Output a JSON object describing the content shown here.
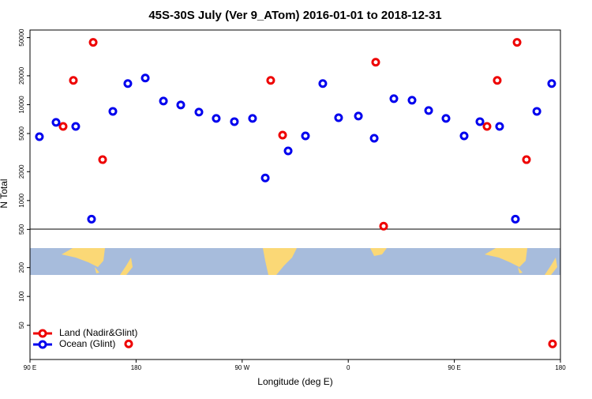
{
  "chart_data": {
    "type": "scatter",
    "title": "45S-30S July (Ver 9_ATom)   2016-01-01 to 2018-12-31",
    "xlabel": "Longitude (deg E)",
    "ylabel": "N Total",
    "xlim": [
      90,
      540
    ],
    "xticks": [
      {
        "value": 90,
        "label": "90 E"
      },
      180,
      {
        "value": 270,
        "label": "90 W"
      },
      {
        "value": 360,
        "label": "0"
      },
      {
        "value": 450,
        "label": "90 E"
      },
      {
        "value": 540,
        "label": "180"
      }
    ],
    "ylim": [
      22,
      60000
    ],
    "log_y": true,
    "yticks": [
      50,
      100,
      200,
      500,
      1000,
      2000,
      5000,
      10000,
      20000,
      50000
    ],
    "legend": "bottom-left",
    "series": [
      {
        "name": "Land (Nadir&Glint)",
        "color": "#ee0000",
        "x": [
          118.1,
          126.8,
          143.6,
          151.6,
          294.2,
          304.3,
          383.3,
          390.0,
          173.7,
          477.7,
          486.4,
          503.2,
          511.2,
          533.3
        ],
        "values": [
          5930,
          17900,
          44600,
          2670,
          17900,
          4810,
          27700,
          540,
          32,
          5930,
          17900,
          44600,
          2670,
          32
        ]
      },
      {
        "name": "Ocean (Glint)",
        "color": "#0000ee",
        "x": [
          98.0,
          112.1,
          128.8,
          142.2,
          160.3,
          173.0,
          187.8,
          203.2,
          217.9,
          233.3,
          248.0,
          263.4,
          278.8,
          289.6,
          309.0,
          323.7,
          338.4,
          351.8,
          368.6,
          382.0,
          398.7,
          414.1,
          428.2,
          442.9,
          458.3,
          471.7,
          488.4,
          501.8,
          520.0,
          532.6
        ],
        "values": [
          4630,
          6530,
          5930,
          640,
          8510,
          16600,
          18950,
          10900,
          9930,
          8360,
          7180,
          6650,
          7180,
          1720,
          3290,
          4720,
          16600,
          7310,
          7600,
          4460,
          11550,
          11120,
          8690,
          7180,
          4720,
          6650,
          5930,
          640,
          8510,
          16600
        ]
      }
    ]
  }
}
